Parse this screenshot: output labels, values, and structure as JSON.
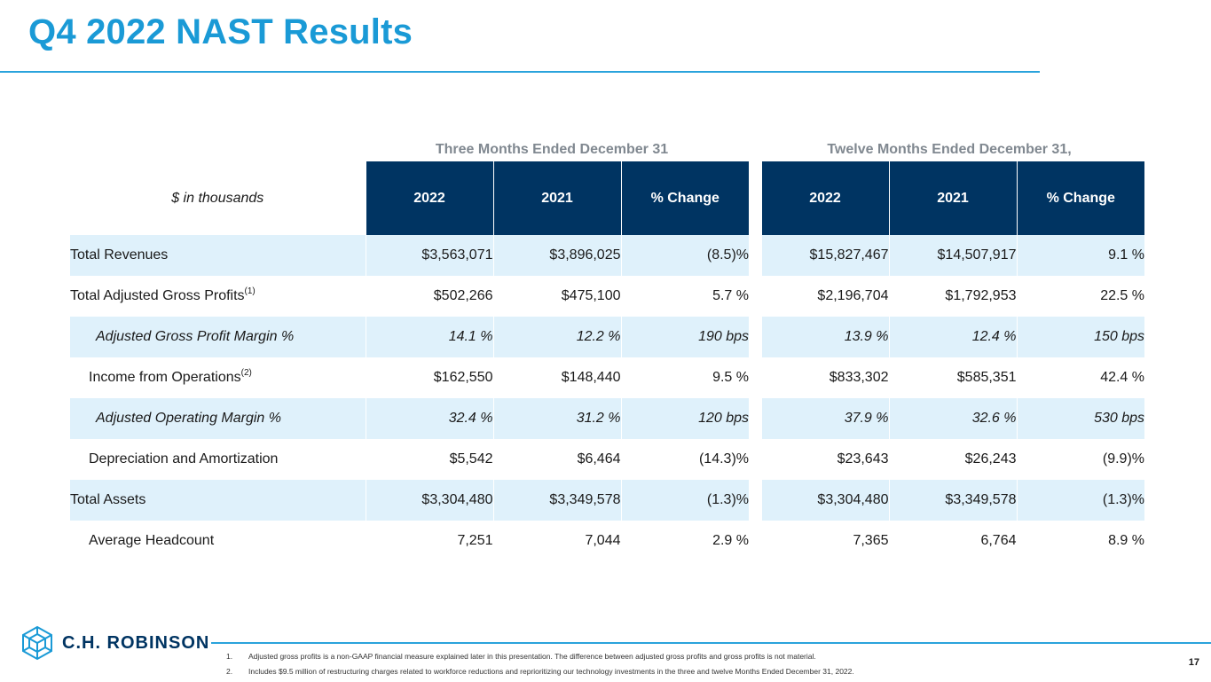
{
  "title": "Q4 2022 NAST Results",
  "group_headers": {
    "three_months": "Three Months Ended December 31",
    "twelve_months": "Twelve Months Ended December 31,"
  },
  "table": {
    "unit_label": "$ in thousands",
    "columns": [
      "2022",
      "2021",
      "% Change",
      "2022",
      "2021",
      "% Change"
    ],
    "rows": [
      {
        "label": "Total Revenues",
        "sup": "",
        "values": [
          "$3,563,071",
          "$3,896,025",
          "(8.5)%",
          "$15,827,467",
          "$14,507,917",
          "9.1 %"
        ]
      },
      {
        "label": "Total Adjusted Gross Profits",
        "sup": "(1)",
        "values": [
          "$502,266",
          "$475,100",
          "5.7 %",
          "$2,196,704",
          "$1,792,953",
          "22.5 %"
        ]
      },
      {
        "label": "Adjusted Gross Profit Margin %",
        "sup": "",
        "values": [
          "14.1 %",
          "12.2 %",
          "190 bps",
          "13.9 %",
          "12.4 %",
          "150 bps"
        ]
      },
      {
        "label": "Income from Operations",
        "sup": "(2)",
        "values": [
          "$162,550",
          "$148,440",
          "9.5 %",
          "$833,302",
          "$585,351",
          "42.4 %"
        ]
      },
      {
        "label": "Adjusted Operating Margin %",
        "sup": "",
        "values": [
          "32.4 %",
          "31.2 %",
          "120 bps",
          "37.9 %",
          "32.6 %",
          "530 bps"
        ]
      },
      {
        "label": "Depreciation and Amortization",
        "sup": "",
        "values": [
          "$5,542",
          "$6,464",
          "(14.3)%",
          "$23,643",
          "$26,243",
          "(9.9)%"
        ]
      },
      {
        "label": "Total Assets",
        "sup": "",
        "values": [
          "$3,304,480",
          "$3,349,578",
          "(1.3)%",
          "$3,304,480",
          "$3,349,578",
          "(1.3)%"
        ]
      },
      {
        "label": "Average Headcount",
        "sup": "",
        "values": [
          "7,251",
          "7,044",
          "2.9 %",
          "7,365",
          "6,764",
          "8.9 %"
        ]
      }
    ]
  },
  "logo": {
    "name": "C.H. ROBINSON",
    "icon": "ch-robinson-cube-logo"
  },
  "footnotes": [
    {
      "num": "1.",
      "text": "Adjusted gross profits is a non-GAAP financial measure explained later in this presentation. The difference between adjusted gross profits and gross profits is not material."
    },
    {
      "num": "2.",
      "text": "Includes $9.5 million of restructuring charges related to workforce reductions and reprioritizing our technology investments in the three and twelve Months Ended December 31, 2022."
    }
  ],
  "page_number": "17",
  "colors": {
    "title": "#1a9ad6",
    "header_bg": "#003462",
    "row_shade": "#dff1fb",
    "rule": "#2aa3dc"
  }
}
